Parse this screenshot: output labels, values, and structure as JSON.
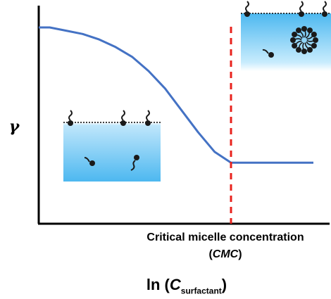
{
  "chart_data": {
    "type": "line",
    "ylabel": "γ",
    "xlabel": {
      "prefix": "ln (",
      "variable": "C",
      "subscript": "surfactant",
      "suffix": ")"
    },
    "series": [
      {
        "values_description": "surface tension vs ln concentration",
        "color": "#4472c4",
        "points": [
          [
            0.0,
            0.9
          ],
          [
            0.04,
            0.9
          ],
          [
            0.1,
            0.885
          ],
          [
            0.16,
            0.87
          ],
          [
            0.22,
            0.845
          ],
          [
            0.28,
            0.81
          ],
          [
            0.34,
            0.765
          ],
          [
            0.4,
            0.7
          ],
          [
            0.46,
            0.62
          ],
          [
            0.52,
            0.52
          ],
          [
            0.58,
            0.42
          ],
          [
            0.64,
            0.33
          ],
          [
            0.7,
            0.28
          ],
          [
            0.76,
            0.28
          ],
          [
            0.88,
            0.28
          ],
          [
            1.0,
            0.28
          ]
        ]
      }
    ],
    "annotations": {
      "cmc_line": {
        "x": 0.7,
        "color": "#e8221c",
        "style": "dashed"
      },
      "cmc_label": "Critical micelle concentration",
      "cmc_abbr": "CMC",
      "cmc_open": "(",
      "cmc_close": ")"
    },
    "grid": false,
    "xlim": [
      0,
      1.0
    ],
    "ylim": [
      0,
      1.0
    ]
  },
  "colors": {
    "axis": "#000000",
    "curve": "#4472c4",
    "cmc_line": "#e8221c",
    "water_top": "#ffffff",
    "water_bottom": "#4db8f0",
    "surfactant": "#1a1a1a"
  },
  "icons": [
    "surfactant-molecule-icon",
    "micelle-icon",
    "water-surface-icon"
  ]
}
